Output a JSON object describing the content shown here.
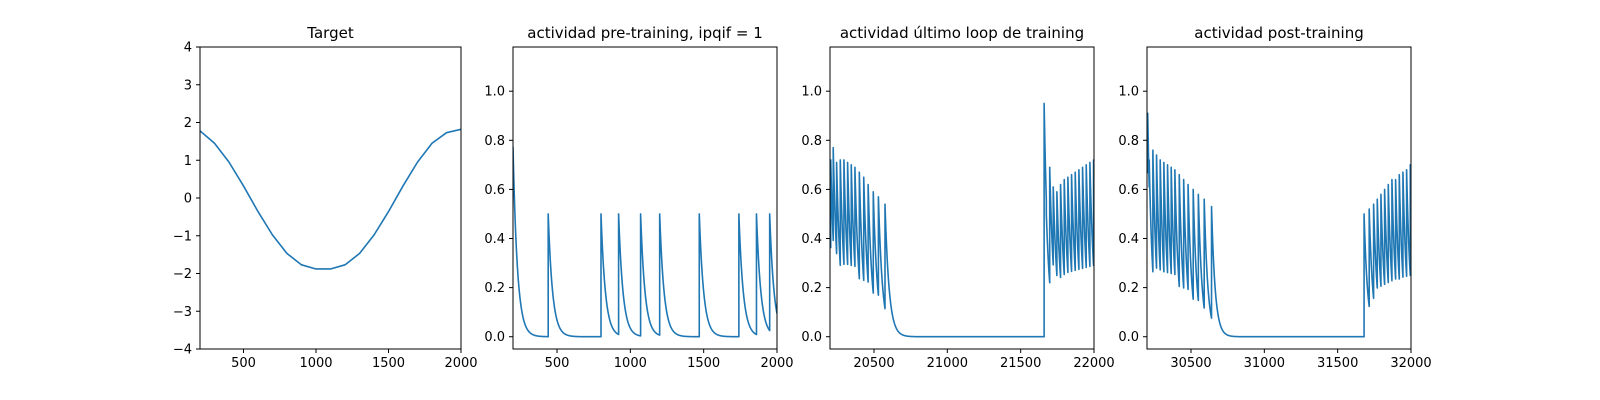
{
  "chart_data": [
    {
      "type": "line",
      "title": "Target",
      "xlim": [
        200,
        2000
      ],
      "ylim": [
        -4,
        4
      ],
      "xticks": [
        500,
        1000,
        1500,
        2000
      ],
      "xtick_labels": [
        "500",
        "1000",
        "1500",
        "2000"
      ],
      "yticks": [
        -4,
        -3,
        -2,
        -1,
        0,
        1,
        2,
        3,
        4
      ],
      "ytick_labels": [
        "−4",
        "−3",
        "−2",
        "−1",
        "0",
        "1",
        "2",
        "3",
        "4"
      ],
      "color": "#1f77b4",
      "series": [
        {
          "x": [
            200,
            300,
            400,
            500,
            600,
            700,
            800,
            900,
            1000,
            1100,
            1200,
            1300,
            1400,
            1500,
            1600,
            1700,
            1800,
            1900,
            2000
          ],
          "y": [
            1.78,
            1.45,
            0.95,
            0.32,
            -0.36,
            -0.98,
            -1.47,
            -1.77,
            -1.88,
            -1.88,
            -1.77,
            -1.47,
            -0.98,
            -0.36,
            0.32,
            0.95,
            1.45,
            1.73,
            1.82
          ]
        }
      ]
    },
    {
      "type": "line",
      "title": "actividad pre-training, ipqif = 1",
      "xlim": [
        200,
        2000
      ],
      "ylim": [
        -0.05,
        1.18
      ],
      "xticks": [
        500,
        1000,
        1500,
        2000
      ],
      "xtick_labels": [
        "500",
        "1000",
        "1500",
        "2000"
      ],
      "yticks": [
        0.0,
        0.2,
        0.4,
        0.6,
        0.8,
        1.0
      ],
      "ytick_labels": [
        "0.0",
        "0.2",
        "0.4",
        "0.6",
        "0.8",
        "1.0"
      ],
      "color": "#1f77b4",
      "spike_model": {
        "baseline": 0,
        "tau": 30,
        "start_value": 0.8,
        "spike_times": [
          440,
          800,
          920,
          1070,
          1200,
          1470,
          1740,
          1860,
          1950
        ],
        "spike_heights": [
          0.5,
          0.5,
          0.5,
          0.5,
          0.5,
          0.5,
          0.5,
          0.5,
          0.5
        ]
      }
    },
    {
      "type": "line",
      "title": "actividad último loop de training",
      "xlim": [
        20200,
        22000
      ],
      "ylim": [
        -0.05,
        1.18
      ],
      "xticks": [
        20500,
        21000,
        21500,
        22000
      ],
      "xtick_labels": [
        "20500",
        "21000",
        "21500",
        "22000"
      ],
      "yticks": [
        0.0,
        0.2,
        0.4,
        0.6,
        0.8,
        1.0
      ],
      "ytick_labels": [
        "0.0",
        "0.2",
        "0.4",
        "0.6",
        "0.8",
        "1.0"
      ],
      "color": "#1f77b4",
      "spike_model": {
        "baseline": 0,
        "tau": 28,
        "start_value": 0.45,
        "spike_times": [
          20205,
          20222,
          20245,
          20270,
          20295,
          20320,
          20345,
          20370,
          20400,
          20430,
          20460,
          20495,
          20530,
          20575,
          21660,
          21675,
          21698,
          21722,
          21747,
          21772,
          21797,
          21822,
          21847,
          21872,
          21897,
          21922,
          21947,
          21972,
          21997
        ],
        "spike_heights": [
          0.72,
          0.77,
          0.71,
          0.72,
          0.72,
          0.71,
          0.7,
          0.69,
          0.67,
          0.65,
          0.62,
          0.59,
          0.57,
          0.54,
          0.95,
          0.5,
          0.69,
          0.61,
          0.59,
          0.62,
          0.64,
          0.65,
          0.66,
          0.67,
          0.68,
          0.69,
          0.7,
          0.71,
          0.72
        ]
      }
    },
    {
      "type": "line",
      "title": "actividad post-training",
      "xlim": [
        30200,
        32000
      ],
      "ylim": [
        -0.05,
        1.18
      ],
      "xticks": [
        30500,
        31000,
        31500,
        32000
      ],
      "xtick_labels": [
        "30500",
        "31000",
        "31500",
        "32000"
      ],
      "yticks": [
        0.0,
        0.2,
        0.4,
        0.6,
        0.8,
        1.0
      ],
      "ytick_labels": [
        "0.0",
        "0.2",
        "0.4",
        "0.6",
        "0.8",
        "1.0"
      ],
      "color": "#1f77b4",
      "spike_model": {
        "baseline": 0,
        "tau": 25,
        "start_value": 0.85,
        "spike_times": [
          30205,
          30215,
          30240,
          30265,
          30290,
          30315,
          30340,
          30365,
          30390,
          30420,
          30450,
          30480,
          30515,
          30550,
          30590,
          30640,
          31680,
          31715,
          31745,
          31770,
          31795,
          31820,
          31845,
          31870,
          31895,
          31920,
          31945,
          31970,
          31995
        ],
        "spike_heights": [
          0.91,
          0.72,
          0.76,
          0.74,
          0.72,
          0.71,
          0.7,
          0.69,
          0.68,
          0.66,
          0.64,
          0.62,
          0.6,
          0.58,
          0.56,
          0.53,
          0.5,
          0.52,
          0.54,
          0.56,
          0.58,
          0.6,
          0.62,
          0.64,
          0.64,
          0.66,
          0.67,
          0.68,
          0.7
        ]
      }
    }
  ]
}
